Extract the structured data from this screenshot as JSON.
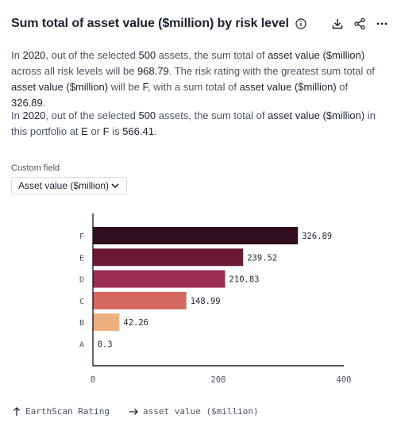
{
  "header": {
    "title": "Sum total of asset value ($million) by risk level",
    "icons": [
      "info-icon",
      "download-icon",
      "share-icon",
      "more-icon"
    ]
  },
  "paragraph1": {
    "t1": "In ",
    "year": "2020",
    "t2": ", out of the selected ",
    "count": "500",
    "t3": " assets, the sum total of ",
    "metric1": "asset value ($million)",
    "t4": " across all risk levels will be ",
    "total": "968.79",
    "t5": ". The risk rating with the greatest sum total of ",
    "metric2": "asset value ($million)",
    "t6": " will be ",
    "rating": "F",
    "t7": ", with a sum total of ",
    "metric3": "asset value ($million)",
    "t8": " of ",
    "top_value": "326.89",
    "t9": "."
  },
  "paragraph2": {
    "t1": "In ",
    "year": "2020",
    "t2": ", out of the selected ",
    "count": "500",
    "t3": " assets, the sum total of ",
    "metric": "asset value ($million)",
    "t4": " in this portfolio at ",
    "r1": "E",
    "t5": " or ",
    "r2": "F",
    "t6": " is ",
    "value": "566.41",
    "t7": "."
  },
  "custom_field": {
    "label": "Custom field",
    "selected": "Asset value ($million)"
  },
  "footer": {
    "y_axis": "EarthScan Rating",
    "x_axis": "asset value ($million)"
  },
  "chart_data": {
    "type": "bar",
    "orientation": "horizontal",
    "categories": [
      "F",
      "E",
      "D",
      "C",
      "B",
      "A"
    ],
    "values": [
      326.89,
      239.52,
      210.83,
      148.99,
      42.26,
      0.3
    ],
    "value_labels": [
      "326.89",
      "239.52",
      "210.83",
      "148.99",
      "42.26",
      "0.3"
    ],
    "colors": [
      "#2f0c1e",
      "#6b1832",
      "#9b2e51",
      "#d5675f",
      "#ebb07e",
      "#f2c99c"
    ],
    "x_ticks": [
      "0",
      "200",
      "400"
    ],
    "xlim": [
      0,
      400
    ],
    "grid": false,
    "legend": "none"
  }
}
